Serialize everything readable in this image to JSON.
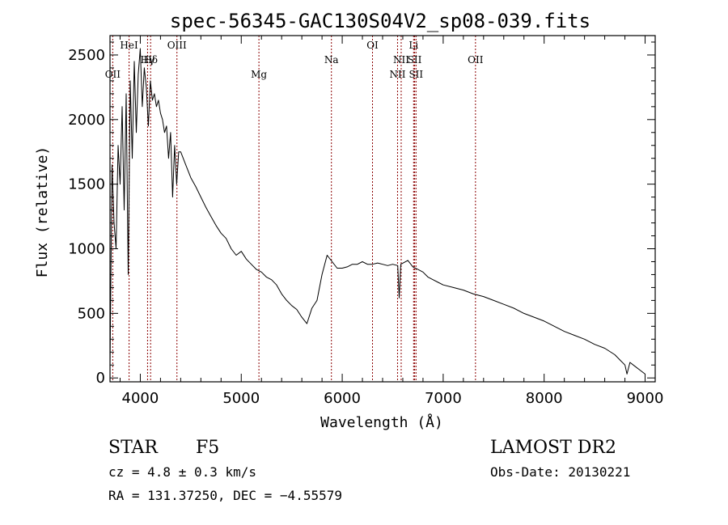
{
  "chart_data": {
    "type": "line",
    "title": "spec-56345-GAC130S04V2_sp08-039.fits",
    "xlabel": "Wavelength (Å)",
    "ylabel": "Flux (relative)",
    "xlim": [
      3700,
      9100
    ],
    "ylim": [
      -30,
      2650
    ],
    "x_ticks": [
      4000,
      5000,
      6000,
      7000,
      8000,
      9000
    ],
    "y_ticks": [
      0,
      500,
      1000,
      1500,
      2000,
      2500
    ],
    "grid": false,
    "series": [
      {
        "x": [
          3700,
          3720,
          3740,
          3760,
          3780,
          3800,
          3820,
          3840,
          3860,
          3880,
          3900,
          3920,
          3940,
          3960,
          3980,
          4000,
          4020,
          4040,
          4060,
          4080,
          4100,
          4120,
          4140,
          4160,
          4180,
          4200,
          4220,
          4240,
          4260,
          4280,
          4300,
          4320,
          4340,
          4360,
          4380,
          4400,
          4450,
          4500,
          4550,
          4600,
          4650,
          4700,
          4750,
          4800,
          4850,
          4900,
          4950,
          5000,
          5050,
          5100,
          5150,
          5200,
          5250,
          5300,
          5350,
          5400,
          5450,
          5500,
          5550,
          5600,
          5650,
          5700,
          5750,
          5800,
          5850,
          5900,
          5950,
          6000,
          6050,
          6100,
          6150,
          6200,
          6250,
          6300,
          6350,
          6400,
          6450,
          6500,
          6550,
          6564,
          6580,
          6650,
          6700,
          6750,
          6800,
          6850,
          6900,
          6950,
          7000,
          7100,
          7200,
          7300,
          7400,
          7500,
          7600,
          7700,
          7800,
          7900,
          8000,
          8100,
          8200,
          8300,
          8400,
          8500,
          8600,
          8700,
          8750,
          8800,
          8820,
          8850,
          8900,
          8950,
          9000
        ],
        "y": [
          100,
          1650,
          1200,
          1000,
          1800,
          1500,
          2100,
          1300,
          2200,
          800,
          2300,
          1700,
          2450,
          1900,
          2350,
          2550,
          2100,
          2400,
          2250,
          1950,
          2300,
          2150,
          2200,
          2100,
          2150,
          2050,
          2000,
          1900,
          1950,
          1700,
          1900,
          1400,
          1800,
          1500,
          1750,
          1750,
          1650,
          1550,
          1480,
          1400,
          1320,
          1250,
          1180,
          1120,
          1080,
          1000,
          950,
          980,
          920,
          880,
          840,
          820,
          780,
          760,
          720,
          650,
          600,
          560,
          530,
          470,
          420,
          540,
          600,
          800,
          950,
          900,
          850,
          850,
          860,
          880,
          880,
          900,
          880,
          880,
          890,
          880,
          870,
          880,
          870,
          620,
          880,
          910,
          860,
          840,
          820,
          780,
          760,
          740,
          720,
          700,
          680,
          650,
          630,
          600,
          570,
          540,
          500,
          470,
          440,
          400,
          360,
          330,
          300,
          260,
          230,
          180,
          140,
          100,
          30,
          120,
          90,
          60,
          30
        ]
      }
    ],
    "line_markers": [
      {
        "x": 3727,
        "label": "OII",
        "label_pos": "low"
      },
      {
        "x": 3889,
        "label": "HeI",
        "label_pos": "high"
      },
      {
        "x": 4072,
        "label": "Hγ",
        "label_pos": "mid"
      },
      {
        "x": 4102,
        "label": "Hδ",
        "label_pos": "mid"
      },
      {
        "x": 4363,
        "label": "OIII",
        "label_pos": "high"
      },
      {
        "x": 5175,
        "label": "Mg",
        "label_pos": "low"
      },
      {
        "x": 5893,
        "label": "Na",
        "label_pos": "mid"
      },
      {
        "x": 6300,
        "label": "OI",
        "label_pos": "high"
      },
      {
        "x": 6548,
        "label": "NII",
        "label_pos": "low"
      },
      {
        "x": 6584,
        "label": "NII",
        "label_pos": "mid"
      },
      {
        "x": 6707,
        "label": "Li",
        "label_pos": "high"
      },
      {
        "x": 6717,
        "label": "SII",
        "label_pos": "mid"
      },
      {
        "x": 6731,
        "label": "SII",
        "label_pos": "low"
      },
      {
        "x": 7320,
        "label": "OII",
        "label_pos": "mid"
      }
    ]
  },
  "footer": {
    "class_label": "STAR",
    "subclass_label": "F5",
    "cz_text": "cz = 4.8 ± 0.3 km/s",
    "radec_text": "RA = 131.37250, DEC =  −4.55579",
    "survey_label": "LAMOST DR2",
    "obsdate_text": "Obs-Date: 20130221"
  }
}
